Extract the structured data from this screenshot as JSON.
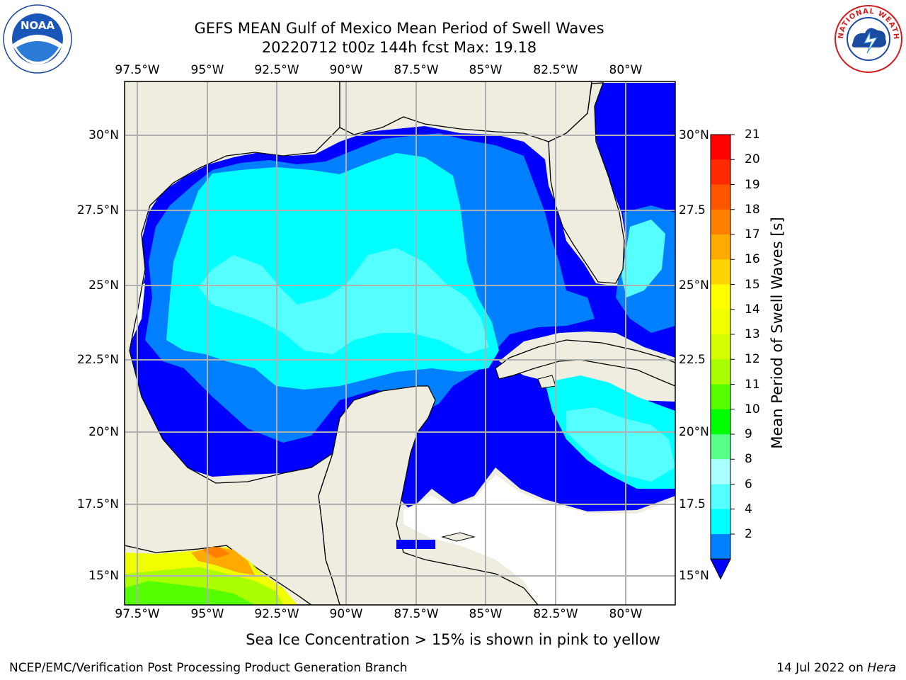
{
  "title": {
    "line1": "GEFS MEAN Gulf of Mexico Mean Period of Swell Waves",
    "line2": "20220712 t00z 144h fcst   Max: 19.18"
  },
  "axes": {
    "longitudes": [
      "97.5°W",
      "95°W",
      "92.5°W",
      "90°W",
      "87.5°W",
      "85°W",
      "82.5°W",
      "80°W"
    ],
    "latitudes": [
      "30°N",
      "27.5°N",
      "25°N",
      "22.5°N",
      "20°N",
      "17.5°N",
      "15°N"
    ],
    "latitudes_right": [
      "30°N",
      "27.5",
      "25°N",
      "22.5",
      "20°N",
      "17.5",
      "15°N"
    ]
  },
  "colorbar": {
    "label": "Mean Period of Swell Waves [s]",
    "ticks": [
      "21",
      "20",
      "19",
      "18",
      "17",
      "16",
      "15",
      "14",
      "13",
      "12",
      "11",
      "10",
      "9",
      "8",
      "6",
      "4",
      "2"
    ],
    "colors": [
      "#ff0000",
      "#ff2a00",
      "#ff5500",
      "#ff7f00",
      "#ffaa00",
      "#ffd400",
      "#ffff00",
      "#f0ff00",
      "#d4ff00",
      "#aaff00",
      "#55ff00",
      "#00ff00",
      "#55ff88",
      "#aaffff",
      "#55ffff",
      "#00ffff",
      "#0080ff"
    ],
    "extend_color": "#0000ff"
  },
  "map_colors": {
    "land": "#eeede0",
    "ocean_no_data": "#ffffff",
    "level_2": "#0000ff",
    "level_4": "#0080ff",
    "level_6": "#00ffff",
    "level_8": "#55ffff"
  },
  "footnote": "Sea Ice Concentration > 15% is shown in pink to yellow",
  "credit": "NCEP/EMC/Verification Post Processing Product Generation Branch",
  "date": {
    "text": "14 Jul 2022 on",
    "host": "Hera"
  },
  "logos": {
    "noaa": "NOAA",
    "nws": "NATIONAL WEATHER SERVICE"
  }
}
